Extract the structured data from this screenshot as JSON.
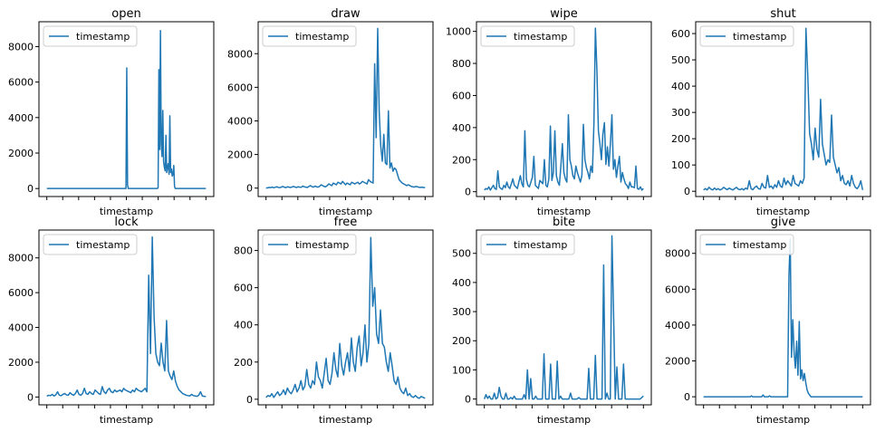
{
  "chart_data": [
    {
      "type": "line",
      "title": "open",
      "xlabel": "timestamp",
      "ylabel": "",
      "legend": "top-left",
      "series_name": "timestamp",
      "ylim": [
        -450,
        9400
      ],
      "yticks": [
        0,
        2000,
        4000,
        6000,
        8000
      ],
      "values": [
        0,
        0,
        0,
        0,
        0,
        0,
        0,
        0,
        0,
        0,
        0,
        0,
        0,
        0,
        0,
        0,
        0,
        0,
        0,
        0,
        0,
        0,
        0,
        0,
        0,
        0,
        0,
        0,
        0,
        0,
        0,
        0,
        0,
        0,
        0,
        0,
        0,
        0,
        0,
        0,
        0,
        0,
        0,
        0,
        0,
        0,
        0,
        0,
        0,
        0,
        0,
        0,
        0,
        0,
        0,
        0,
        0,
        0,
        0,
        0,
        0,
        0,
        0,
        0,
        0,
        0,
        0,
        0,
        0,
        0,
        0,
        0,
        0,
        0,
        0,
        0,
        0,
        0,
        0,
        0,
        0,
        0,
        0,
        0,
        0,
        0,
        0,
        0,
        0,
        0,
        0,
        0,
        0,
        0,
        0,
        0,
        0,
        0,
        0,
        0,
        0,
        0,
        6800,
        200,
        0,
        0,
        0,
        0,
        0,
        0,
        0,
        0,
        0,
        0,
        0,
        0,
        0,
        0,
        0,
        0,
        0,
        0,
        0,
        0,
        0,
        0,
        0,
        0,
        0,
        0,
        0,
        0,
        0,
        0,
        0,
        0,
        0,
        0,
        0,
        0,
        0,
        0,
        50,
        6700,
        2200,
        8900,
        2500,
        1800,
        4400,
        1500,
        1200,
        1000,
        3000,
        900,
        1200,
        1400,
        800,
        4100,
        900,
        1100,
        700,
        800,
        1300,
        100,
        0,
        0,
        0,
        0,
        0,
        0,
        0,
        0,
        0,
        0,
        0,
        0,
        0,
        0,
        0,
        0,
        0,
        0,
        0,
        0,
        0,
        0,
        0,
        0,
        0,
        0,
        0,
        0,
        0,
        0,
        0,
        0,
        0,
        0,
        0,
        0,
        0,
        0,
        0,
        0
      ]
    },
    {
      "type": "line",
      "title": "draw",
      "xlabel": "timestamp",
      "ylabel": "",
      "legend": "top-left",
      "series_name": "timestamp",
      "ylim": [
        -500,
        9900
      ],
      "yticks": [
        0,
        2000,
        4000,
        6000,
        8000
      ],
      "values": [
        0,
        20,
        40,
        30,
        60,
        20,
        50,
        80,
        40,
        30,
        60,
        100,
        50,
        30,
        80,
        60,
        40,
        70,
        100,
        60,
        40,
        80,
        60,
        50,
        120,
        80,
        60,
        40,
        100,
        150,
        90,
        60,
        120,
        80,
        60,
        100,
        200,
        150,
        100,
        80,
        150,
        250,
        200,
        150,
        300,
        250,
        200,
        350,
        300,
        250,
        400,
        300,
        200,
        300,
        250,
        200,
        350,
        300,
        250,
        300,
        350,
        250,
        300,
        400,
        350,
        300,
        250,
        500,
        400,
        350,
        300,
        7400,
        3000,
        9500,
        4500,
        2500,
        1600,
        3200,
        1500,
        1400,
        4600,
        1200,
        1500,
        1000,
        1200,
        1100,
        800,
        500,
        400,
        300,
        250,
        200,
        150,
        200,
        150,
        100,
        80,
        60,
        100,
        80,
        50,
        40,
        60,
        30,
        40
      ]
    },
    {
      "type": "line",
      "title": "wipe",
      "xlabel": "timestamp",
      "ylabel": "",
      "legend": "top-left",
      "series_name": "timestamp",
      "ylim": [
        -30,
        1060
      ],
      "yticks": [
        0,
        200,
        400,
        600,
        800,
        1000
      ],
      "values": [
        10,
        20,
        15,
        30,
        10,
        25,
        40,
        20,
        15,
        130,
        30,
        20,
        15,
        40,
        25,
        60,
        30,
        20,
        50,
        80,
        40,
        30,
        20,
        60,
        100,
        50,
        30,
        380,
        80,
        40,
        30,
        60,
        90,
        220,
        40,
        30,
        20,
        70,
        60,
        50,
        200,
        40,
        30,
        80,
        410,
        70,
        120,
        380,
        100,
        60,
        40,
        160,
        300,
        120,
        80,
        60,
        480,
        200,
        160,
        100,
        80,
        160,
        120,
        90,
        60,
        100,
        420,
        200,
        150,
        120,
        80,
        160,
        120,
        420,
        1020,
        760,
        380,
        300,
        200,
        360,
        430,
        170,
        280,
        160,
        300,
        480,
        140,
        200,
        90,
        160,
        220,
        60,
        120,
        80,
        50,
        40,
        20,
        60,
        30,
        30,
        25,
        160,
        20,
        15,
        30,
        10,
        20
      ]
    },
    {
      "type": "line",
      "title": "shut",
      "xlabel": "timestamp",
      "ylabel": "",
      "legend": "top-left",
      "series_name": "timestamp",
      "ylim": [
        -20,
        645
      ],
      "yticks": [
        0,
        100,
        200,
        300,
        400,
        500,
        600
      ],
      "values": [
        5,
        10,
        5,
        15,
        8,
        5,
        12,
        6,
        10,
        5,
        8,
        15,
        10,
        6,
        12,
        8,
        5,
        10,
        15,
        8,
        6,
        10,
        5,
        12,
        8,
        40,
        10,
        6,
        15,
        20,
        10,
        8,
        30,
        15,
        12,
        60,
        15,
        20,
        10,
        25,
        15,
        40,
        20,
        15,
        50,
        25,
        40,
        30,
        20,
        60,
        30,
        25,
        20,
        40,
        30,
        50,
        620,
        440,
        220,
        180,
        120,
        240,
        160,
        130,
        350,
        180,
        140,
        100,
        120,
        110,
        290,
        130,
        100,
        70,
        90,
        40,
        60,
        30,
        25,
        40,
        20,
        60,
        30,
        15,
        10,
        20,
        40,
        5
      ]
    },
    {
      "type": "line",
      "title": "lock",
      "xlabel": "timestamp",
      "ylabel": "",
      "legend": "top-left",
      "series_name": "timestamp",
      "ylim": [
        -450,
        9600
      ],
      "yticks": [
        0,
        2000,
        4000,
        6000,
        8000
      ],
      "values": [
        50,
        100,
        80,
        150,
        60,
        120,
        300,
        100,
        80,
        150,
        200,
        120,
        100,
        250,
        150,
        100,
        200,
        400,
        150,
        100,
        200,
        500,
        200,
        150,
        300,
        200,
        150,
        400,
        300,
        200,
        150,
        600,
        300,
        200,
        400,
        500,
        300,
        250,
        400,
        300,
        350,
        400,
        300,
        500,
        400,
        350,
        300,
        250,
        400,
        300,
        500,
        400,
        350,
        300,
        400,
        500,
        300,
        7000,
        2500,
        9200,
        4600,
        2500,
        2000,
        1800,
        3100,
        2000,
        1500,
        4400,
        1500,
        1200,
        1000,
        1500,
        900,
        600,
        400,
        300,
        200,
        150,
        100,
        80,
        60,
        150,
        80,
        60,
        40,
        100,
        300,
        60,
        40,
        30
      ]
    },
    {
      "type": "line",
      "title": "free",
      "xlabel": "timestamp",
      "ylabel": "",
      "legend": "top-left",
      "series_name": "timestamp",
      "ylim": [
        -30,
        910
      ],
      "yticks": [
        0,
        200,
        400,
        600,
        800
      ],
      "values": [
        10,
        20,
        15,
        30,
        10,
        25,
        40,
        20,
        30,
        50,
        25,
        60,
        40,
        30,
        50,
        80,
        40,
        60,
        100,
        50,
        70,
        160,
        80,
        60,
        100,
        80,
        200,
        120,
        100,
        60,
        140,
        220,
        100,
        80,
        140,
        250,
        160,
        120,
        300,
        180,
        130,
        200,
        250,
        150,
        330,
        200,
        150,
        280,
        340,
        180,
        250,
        400,
        200,
        300,
        870,
        500,
        600,
        350,
        300,
        480,
        300,
        280,
        200,
        150,
        250,
        180,
        100,
        80,
        120,
        60,
        40,
        30,
        60,
        20,
        30,
        15,
        10,
        20,
        10,
        5,
        15,
        10,
        5
      ]
    },
    {
      "type": "line",
      "title": "bite",
      "xlabel": "timestamp",
      "ylabel": "",
      "legend": "top-left",
      "series_name": "timestamp",
      "ylim": [
        -20,
        580
      ],
      "yticks": [
        0,
        100,
        200,
        300,
        400,
        500
      ],
      "values": [
        0,
        15,
        2,
        10,
        0,
        0,
        20,
        0,
        5,
        40,
        10,
        0,
        0,
        20,
        0,
        0,
        5,
        0,
        10,
        0,
        0,
        0,
        0,
        0,
        15,
        0,
        100,
        0,
        70,
        0,
        0,
        10,
        0,
        0,
        0,
        0,
        155,
        0,
        0,
        0,
        120,
        0,
        0,
        0,
        130,
        0,
        10,
        0,
        0,
        0,
        0,
        0,
        20,
        0,
        0,
        0,
        0,
        5,
        0,
        0,
        0,
        0,
        0,
        105,
        0,
        0,
        0,
        150,
        0,
        0,
        0,
        0,
        460,
        0,
        20,
        0,
        0,
        560,
        290,
        0,
        110,
        0,
        0,
        0,
        120,
        0,
        0,
        0,
        0,
        0,
        0,
        0,
        0,
        0,
        0,
        5,
        10
      ]
    },
    {
      "type": "line",
      "title": "give",
      "xlabel": "timestamp",
      "ylabel": "",
      "legend": "top-left",
      "series_name": "timestamp",
      "ylim": [
        -450,
        9300
      ],
      "yticks": [
        0,
        2000,
        4000,
        6000,
        8000
      ],
      "values": [
        0,
        0,
        0,
        0,
        0,
        0,
        0,
        0,
        0,
        0,
        0,
        0,
        0,
        0,
        0,
        0,
        0,
        0,
        0,
        0,
        0,
        0,
        0,
        0,
        0,
        0,
        0,
        0,
        0,
        0,
        0,
        0,
        0,
        0,
        0,
        0,
        0,
        50,
        0,
        0,
        0,
        0,
        0,
        0,
        0,
        0,
        100,
        0,
        0,
        0,
        0,
        50,
        0,
        0,
        0,
        0,
        0,
        0,
        0,
        0,
        0,
        0,
        0,
        0,
        0,
        0,
        6700,
        8800,
        2200,
        4300,
        2500,
        1600,
        3100,
        1200,
        4200,
        1000,
        1500,
        900,
        1300,
        800,
        400,
        200,
        100,
        0,
        0,
        0,
        0,
        0,
        0,
        0,
        0,
        0,
        0,
        0,
        0,
        0,
        0,
        0,
        0,
        0,
        0,
        0,
        0,
        0,
        0,
        0,
        0,
        0,
        0,
        0,
        0,
        0,
        0,
        0,
        0,
        0,
        0,
        0,
        0,
        0,
        0,
        0,
        0,
        0
      ]
    }
  ]
}
